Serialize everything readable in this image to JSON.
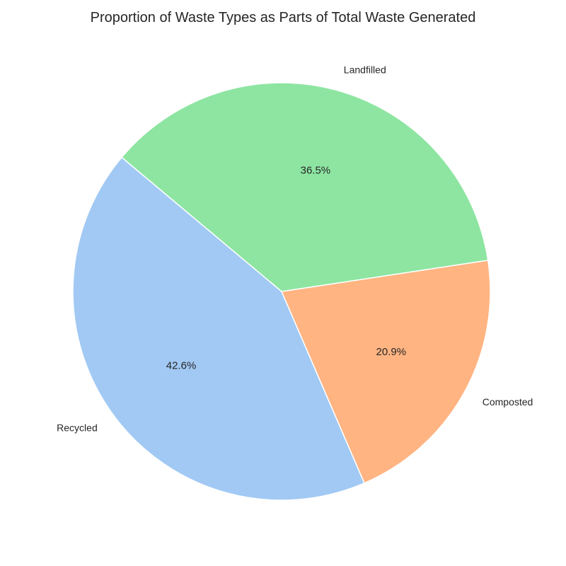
{
  "chart_data": {
    "type": "pie",
    "title": "Proportion of Waste Types as Parts of Total Waste Generated",
    "categories": [
      "Recycled",
      "Composted",
      "Landfilled"
    ],
    "values": [
      42.6,
      20.9,
      36.5
    ],
    "value_labels": [
      "42.6%",
      "20.9%",
      "36.5%"
    ],
    "colors": [
      "#a1c9f4",
      "#ffb482",
      "#8de5a1"
    ],
    "start_angle_deg": 140,
    "direction": "counterclockwise",
    "legend": "none"
  }
}
